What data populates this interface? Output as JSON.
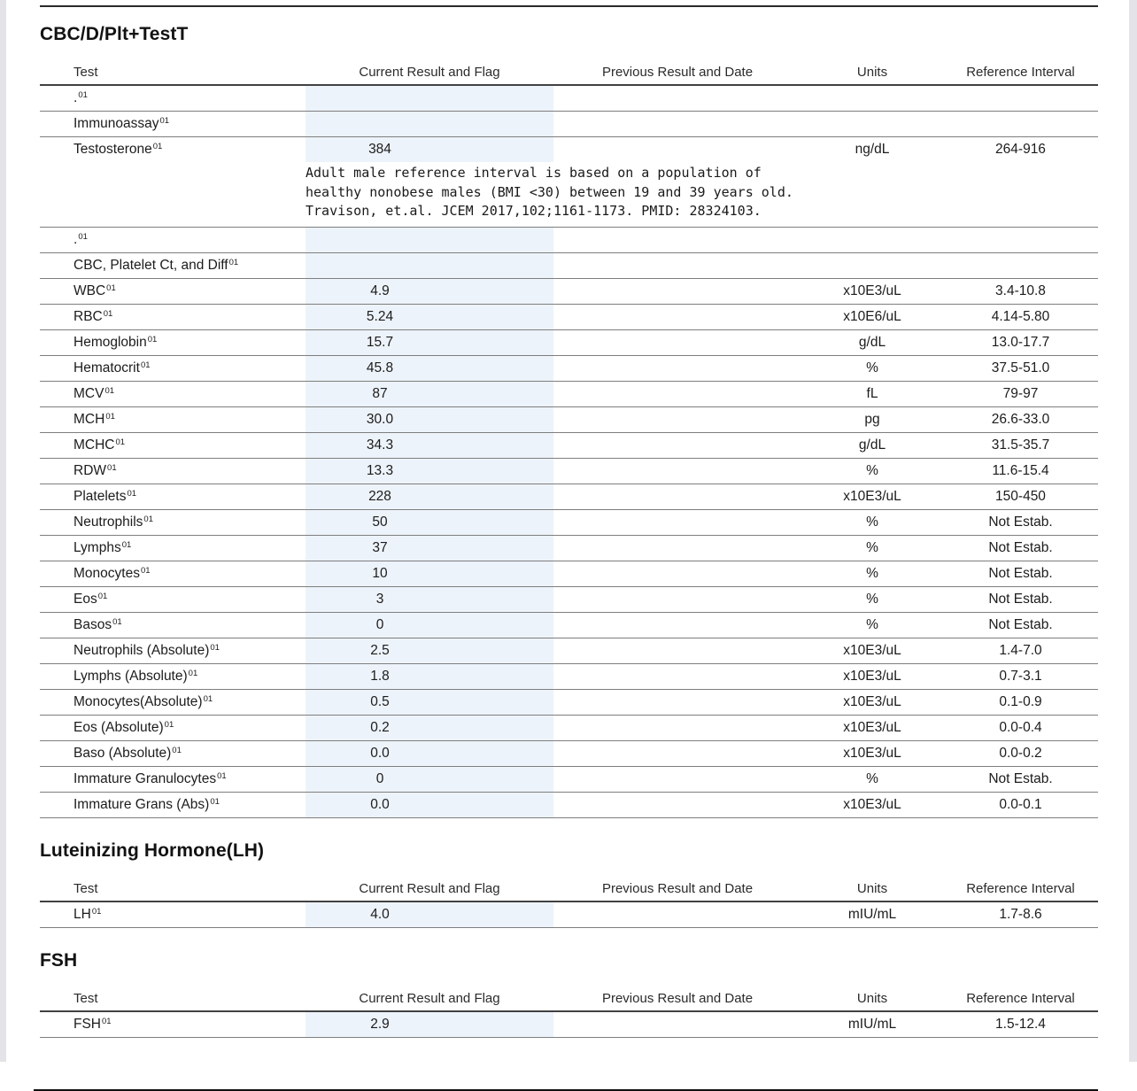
{
  "page": {
    "highlight_color": "#edf3fa"
  },
  "columns": [
    "Test",
    "Current Result and Flag",
    "Previous Result and Date",
    "Units",
    "Reference Interval"
  ],
  "sections": [
    {
      "title": "CBC/D/Plt+TestT",
      "rows": [
        {
          "label": ".",
          "sup": "01",
          "result": "",
          "units": "",
          "ref": ""
        },
        {
          "label": "Immunoassay",
          "sup": "01",
          "result": "",
          "units": "",
          "ref": ""
        },
        {
          "label": "Testosterone",
          "sup": "01",
          "result": "384",
          "units": "ng/dL",
          "ref": "264-916",
          "note": [
            "Adult male reference interval is based on a population of",
            "healthy nonobese males (BMI <30) between 19 and 39 years old.",
            "Travison, et.al. JCEM 2017,102;1161-1173. PMID: 28324103."
          ]
        },
        {
          "label": ".",
          "sup": "01",
          "result": "",
          "units": "",
          "ref": ""
        },
        {
          "label": "CBC, Platelet Ct, and Diff",
          "sup": "01",
          "result": "",
          "units": "",
          "ref": ""
        },
        {
          "label": "WBC",
          "sup": "01",
          "result": "4.9",
          "units": "x10E3/uL",
          "ref": "3.4-10.8"
        },
        {
          "label": "RBC",
          "sup": "01",
          "result": "5.24",
          "units": "x10E6/uL",
          "ref": "4.14-5.80"
        },
        {
          "label": "Hemoglobin",
          "sup": "01",
          "result": "15.7",
          "units": "g/dL",
          "ref": "13.0-17.7"
        },
        {
          "label": "Hematocrit",
          "sup": "01",
          "result": "45.8",
          "units": "%",
          "ref": "37.5-51.0"
        },
        {
          "label": "MCV",
          "sup": "01",
          "result": "87",
          "units": "fL",
          "ref": "79-97"
        },
        {
          "label": "MCH",
          "sup": "01",
          "result": "30.0",
          "units": "pg",
          "ref": "26.6-33.0"
        },
        {
          "label": "MCHC",
          "sup": "01",
          "result": "34.3",
          "units": "g/dL",
          "ref": "31.5-35.7"
        },
        {
          "label": "RDW",
          "sup": "01",
          "result": "13.3",
          "units": "%",
          "ref": "11.6-15.4"
        },
        {
          "label": "Platelets",
          "sup": "01",
          "result": "228",
          "units": "x10E3/uL",
          "ref": "150-450"
        },
        {
          "label": "Neutrophils",
          "sup": "01",
          "result": "50",
          "units": "%",
          "ref": "Not Estab."
        },
        {
          "label": "Lymphs",
          "sup": "01",
          "result": "37",
          "units": "%",
          "ref": "Not Estab."
        },
        {
          "label": "Monocytes",
          "sup": "01",
          "result": "10",
          "units": "%",
          "ref": "Not Estab."
        },
        {
          "label": "Eos",
          "sup": "01",
          "result": "3",
          "units": "%",
          "ref": "Not Estab."
        },
        {
          "label": "Basos",
          "sup": "01",
          "result": "0",
          "units": "%",
          "ref": "Not Estab."
        },
        {
          "label": "Neutrophils (Absolute)",
          "sup": "01",
          "result": "2.5",
          "units": "x10E3/uL",
          "ref": "1.4-7.0"
        },
        {
          "label": "Lymphs (Absolute)",
          "sup": "01",
          "result": "1.8",
          "units": "x10E3/uL",
          "ref": "0.7-3.1"
        },
        {
          "label": "Monocytes(Absolute)",
          "sup": "01",
          "result": "0.5",
          "units": "x10E3/uL",
          "ref": "0.1-0.9"
        },
        {
          "label": "Eos (Absolute)",
          "sup": "01",
          "result": "0.2",
          "units": "x10E3/uL",
          "ref": "0.0-0.4"
        },
        {
          "label": "Baso (Absolute)",
          "sup": "01",
          "result": "0.0",
          "units": "x10E3/uL",
          "ref": "0.0-0.2"
        },
        {
          "label": "Immature Granulocytes",
          "sup": "01",
          "result": "0",
          "units": "%",
          "ref": "Not Estab."
        },
        {
          "label": "Immature Grans (Abs)",
          "sup": "01",
          "result": "0.0",
          "units": "x10E3/uL",
          "ref": "0.0-0.1"
        }
      ]
    },
    {
      "title": "Luteinizing Hormone(LH)",
      "rows": [
        {
          "label": "LH",
          "sup": "01",
          "result": "4.0",
          "units": "mIU/mL",
          "ref": "1.7-8.6"
        }
      ]
    },
    {
      "title": "FSH",
      "rows": [
        {
          "label": "FSH",
          "sup": "01",
          "result": "2.9",
          "units": "mIU/mL",
          "ref": "1.5-12.4"
        }
      ]
    }
  ]
}
